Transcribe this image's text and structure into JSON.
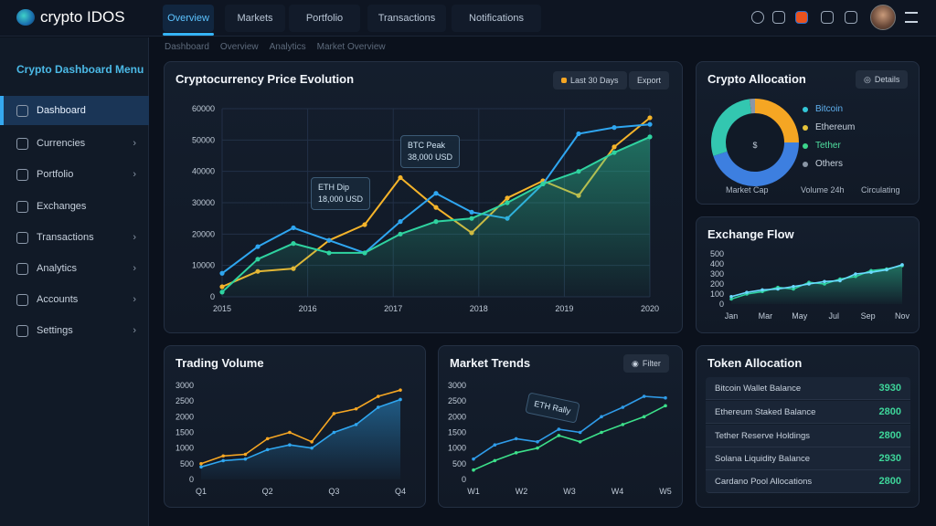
{
  "app": {
    "title": "crypto IDOS"
  },
  "tabs": [
    {
      "label": "Overview"
    },
    {
      "label": "Markets"
    },
    {
      "label": "Portfolio"
    },
    {
      "label": "Transactions"
    },
    {
      "label": "Notifications"
    }
  ],
  "breadcrumbs": [
    "Dashboard",
    "Overview",
    "Analytics",
    "Market Overview"
  ],
  "sidebar": {
    "heading": "Crypto Dashboard Menu",
    "items": [
      {
        "label": "Dashboard"
      },
      {
        "label": "Currencies"
      },
      {
        "label": "Portfolio"
      },
      {
        "label": "Exchanges"
      },
      {
        "label": "Transactions"
      },
      {
        "label": "Analytics"
      },
      {
        "label": "Accounts"
      },
      {
        "label": "Settings"
      }
    ]
  },
  "main_chart": {
    "title": "Cryptocurrency Price Evolution",
    "btn_range": "Last 30 Days",
    "btn_export": "Export",
    "tooltip1": {
      "title": "BTC Peak",
      "value": "38,000 USD"
    },
    "tooltip2": {
      "title": "ETH Dip",
      "value": "18,000 USD"
    }
  },
  "donut": {
    "title": "Crypto Allocation",
    "button": "Details",
    "center": "$",
    "legend": [
      {
        "label": "Bitcoin"
      },
      {
        "label": "Ethereum"
      },
      {
        "label": "Tether"
      },
      {
        "label": "Others"
      }
    ],
    "footer": [
      "Market Cap",
      "Volume 24h",
      "Circulating"
    ]
  },
  "flow": {
    "title": "Exchange Flow"
  },
  "volume": {
    "title": "Trading Volume"
  },
  "trends": {
    "title": "Market Trends",
    "button": "Filter",
    "tooltip": "ETH Rally"
  },
  "tokens": {
    "title": "Token Allocation",
    "rows": [
      {
        "label": "Bitcoin Wallet Balance",
        "value": "3930"
      },
      {
        "label": "Ethereum Staked Balance",
        "value": "2800"
      },
      {
        "label": "Tether Reserve Holdings",
        "value": "2800"
      },
      {
        "label": "Solana Liquidity Balance",
        "value": "2930"
      },
      {
        "label": "Cardano Pool Allocations",
        "value": "2800"
      }
    ]
  },
  "colors": {
    "accent": "#35b3f5",
    "orange": "#f5a623",
    "blue": "#2f9be8",
    "green": "#2fd3a0",
    "gray": "#8a96a6"
  },
  "chart_data": [
    {
      "id": "main",
      "type": "line",
      "title": "Cryptocurrency Price Evolution",
      "ylim": [
        0,
        60000
      ],
      "yticks": [
        "0",
        "10000",
        "20000",
        "30000",
        "40000",
        "50000",
        "60000"
      ],
      "xticks": [
        "2015",
        "2016",
        "2017",
        "2018",
        "2019",
        "2020"
      ],
      "series": [
        {
          "name": "Orange",
          "color": "#f5b42a",
          "values": [
            3200,
            8100,
            9000,
            18000,
            23000,
            38000,
            28500,
            20400,
            31500,
            37000,
            32300,
            47800,
            57100
          ]
        },
        {
          "name": "Blue",
          "color": "#2fa6f0",
          "values": [
            7500,
            16000,
            22000,
            18000,
            14000,
            24000,
            33000,
            27000,
            25000,
            36000,
            52000,
            54000,
            55000
          ]
        },
        {
          "name": "Green",
          "color": "#2fd3a0",
          "fill": true,
          "values": [
            1500,
            12000,
            17000,
            14000,
            14000,
            20000,
            24000,
            25000,
            30000,
            36000,
            40000,
            46000,
            51000
          ]
        }
      ]
    },
    {
      "id": "flow",
      "type": "line",
      "ylim": [
        0,
        600
      ],
      "yticks": [
        "0",
        "100",
        "200",
        "300",
        "400",
        "500"
      ],
      "xticks": [
        "Jan",
        "Mar",
        "May",
        "Jul",
        "Sep",
        "Nov"
      ],
      "series": [
        {
          "name": "A",
          "color": "#2fd3a0",
          "fill": true,
          "values": [
            60,
            120,
            150,
            200,
            180,
            260,
            240,
            300,
            330,
            400,
            420,
            460
          ]
        },
        {
          "name": "B",
          "color": "#6ad9ff",
          "values": [
            90,
            140,
            170,
            180,
            210,
            240,
            270,
            280,
            360,
            380,
            410,
            470
          ]
        }
      ]
    },
    {
      "id": "volume",
      "type": "line",
      "ylim": [
        0,
        3000
      ],
      "yticks": [
        "0",
        "500",
        "1000",
        "1500",
        "2000",
        "2500",
        "3000"
      ],
      "xticks": [
        "Q1",
        "Q2",
        "Q3",
        "Q4"
      ],
      "series": [
        {
          "name": "Orange",
          "color": "#f5a623",
          "values": [
            500,
            750,
            800,
            1300,
            1500,
            1200,
            2100,
            2250,
            2650,
            2850
          ]
        },
        {
          "name": "Blue",
          "color": "#2fa6f0",
          "fill": true,
          "values": [
            400,
            600,
            650,
            950,
            1100,
            1000,
            1500,
            1750,
            2300,
            2550
          ]
        }
      ]
    },
    {
      "id": "trends",
      "type": "line",
      "ylim": [
        0,
        3000
      ],
      "yticks": [
        "0",
        "500",
        "1000",
        "1500",
        "2000",
        "2500",
        "3000"
      ],
      "xticks": [
        "W1",
        "W2",
        "W3",
        "W4",
        "W5"
      ],
      "series": [
        {
          "name": "Blue",
          "color": "#2f9be8",
          "values": [
            650,
            1100,
            1300,
            1200,
            1600,
            1500,
            2000,
            2300,
            2650,
            2600
          ]
        },
        {
          "name": "Green",
          "color": "#3ce08a",
          "values": [
            300,
            600,
            850,
            1000,
            1400,
            1200,
            1500,
            1750,
            2000,
            2350
          ]
        }
      ]
    },
    {
      "id": "donut",
      "type": "pie",
      "labels": [
        "Bitcoin",
        "Ethereum",
        "Tether",
        "Others"
      ],
      "values": [
        25,
        45,
        28,
        2
      ],
      "colors": [
        "#f5a623",
        "#3d7fe0",
        "#33c7b0",
        "#8a96a6"
      ]
    }
  ]
}
